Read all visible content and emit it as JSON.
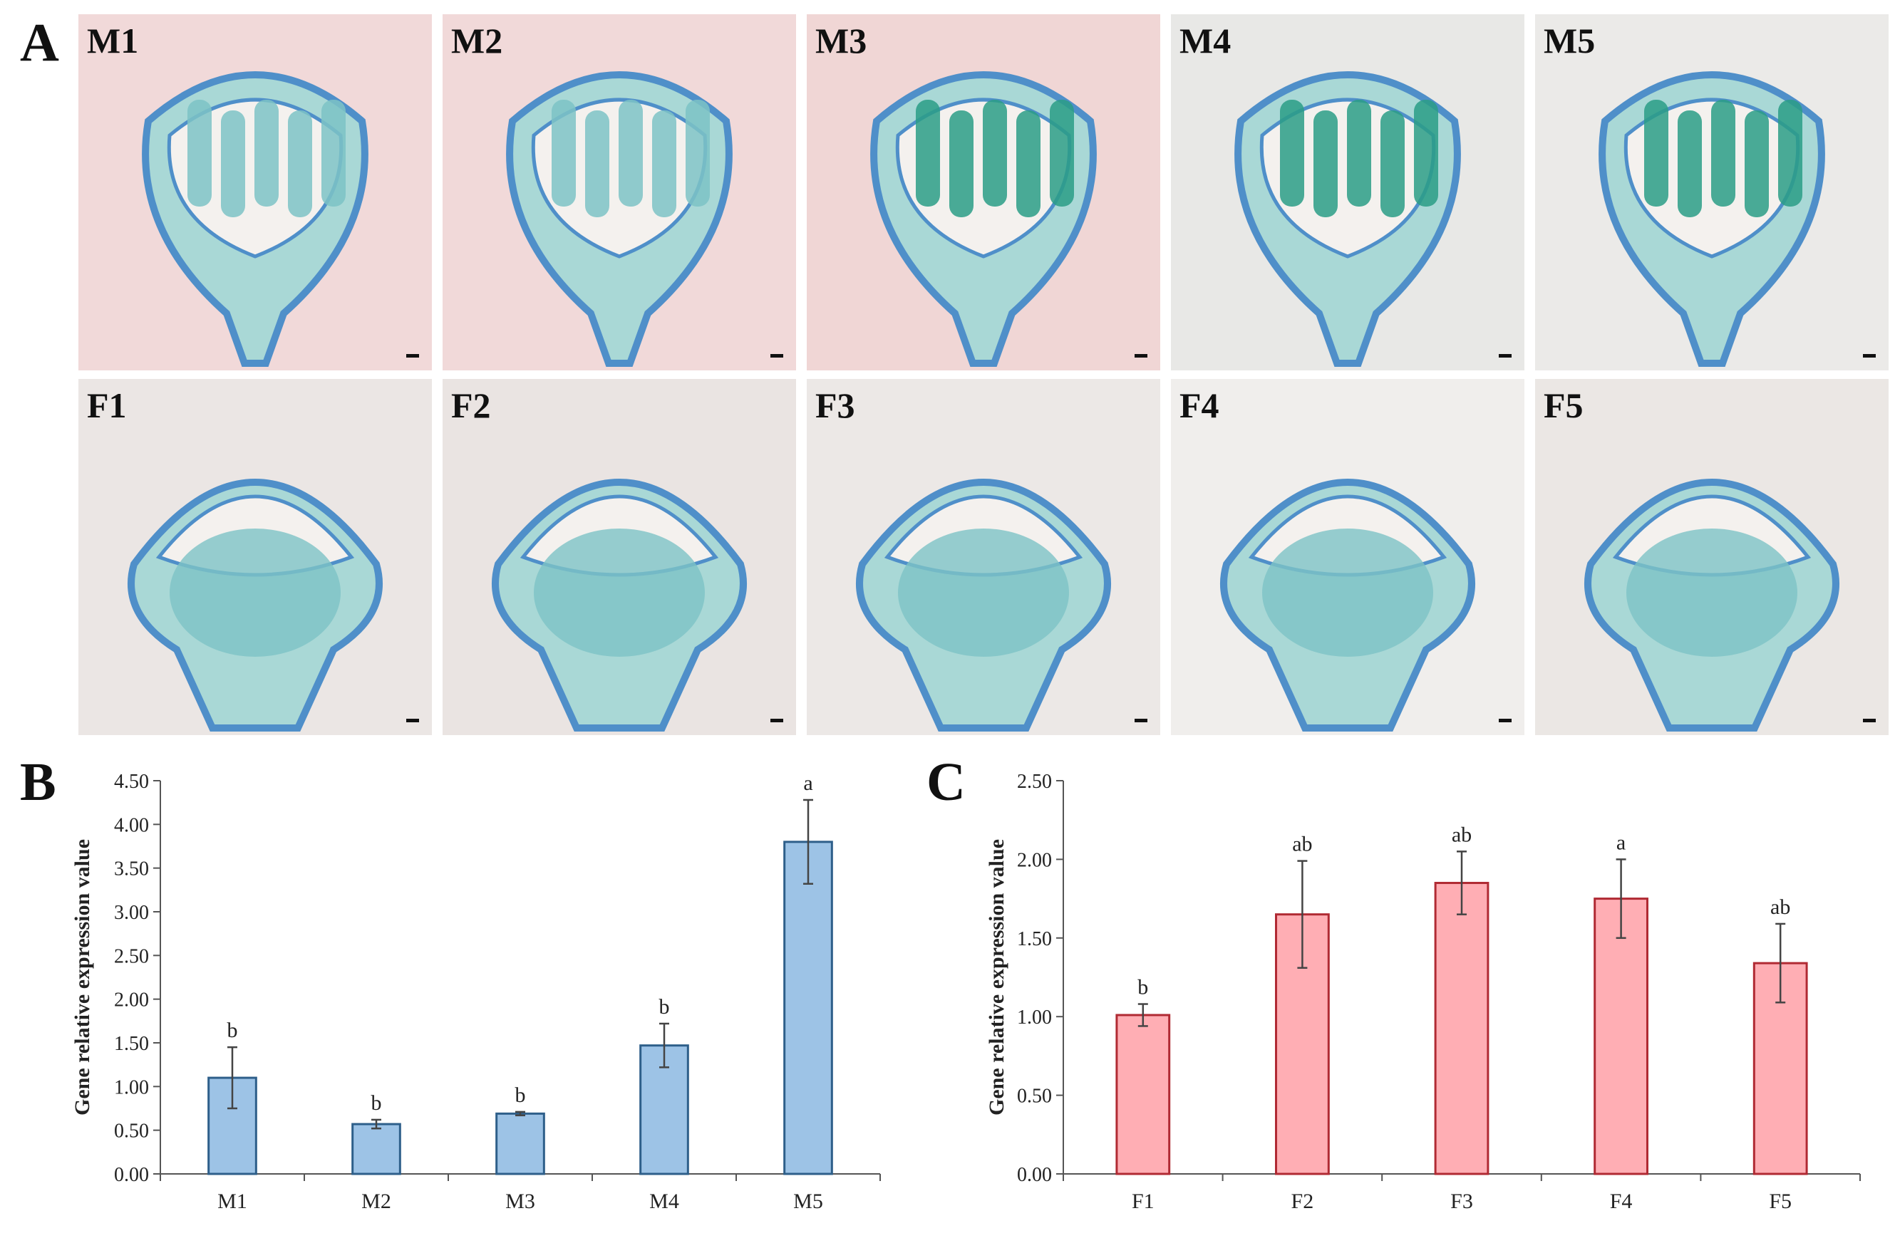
{
  "panel_letters": {
    "a": "A",
    "b": "B",
    "c": "C"
  },
  "micrographs": {
    "top_row": [
      {
        "label": "M1",
        "bg": "#f1d9d9"
      },
      {
        "label": "M2",
        "bg": "#f1d9d9"
      },
      {
        "label": "M3",
        "bg": "#f0d6d5"
      },
      {
        "label": "M4",
        "bg": "#e8e8e6"
      },
      {
        "label": "M5",
        "bg": "#ebeae8"
      }
    ],
    "bottom_row": [
      {
        "label": "F1",
        "bg": "#ebe6e4"
      },
      {
        "label": "F2",
        "bg": "#eae4e2"
      },
      {
        "label": "F3",
        "bg": "#ece8e6"
      },
      {
        "label": "F4",
        "bg": "#f0eeec"
      },
      {
        "label": "F5",
        "bg": "#ebe7e4"
      }
    ],
    "tissue_colors": {
      "outline": "#4f8fc9",
      "tissue": "#7dc3c6",
      "tissue_light": "#a9d8d6",
      "pollen": "#2a9d86"
    }
  },
  "chart_data": [
    {
      "type": "bar",
      "title": "",
      "xlabel": "",
      "ylabel": "Gene relative expression value",
      "categories": [
        "M1",
        "M2",
        "M3",
        "M4",
        "M5"
      ],
      "values": [
        1.1,
        0.57,
        0.69,
        1.47,
        3.8
      ],
      "errors": [
        0.35,
        0.05,
        0.02,
        0.25,
        0.48
      ],
      "significance": [
        "b",
        "b",
        "b",
        "b",
        "a"
      ],
      "ylim": [
        0,
        4.5
      ],
      "yticks": [
        "0.00",
        "0.50",
        "1.00",
        "1.50",
        "2.00",
        "2.50",
        "3.00",
        "3.50",
        "4.00",
        "4.50"
      ],
      "bar_fill": "#9dc3e6",
      "bar_stroke": "#2e5f8a",
      "grid": false
    },
    {
      "type": "bar",
      "title": "",
      "xlabel": "",
      "ylabel": "Gene relative expression value",
      "categories": [
        "F1",
        "F2",
        "F3",
        "F4",
        "F5"
      ],
      "values": [
        1.01,
        1.65,
        1.85,
        1.75,
        1.34
      ],
      "errors": [
        0.07,
        0.34,
        0.2,
        0.25,
        0.25
      ],
      "significance": [
        "b",
        "ab",
        "ab",
        "a",
        "ab"
      ],
      "ylim": [
        0,
        2.5
      ],
      "yticks": [
        "0.00",
        "0.50",
        "1.00",
        "1.50",
        "2.00",
        "2.50"
      ],
      "bar_fill": "#ffaeb4",
      "bar_stroke": "#b02a33",
      "grid": false
    }
  ]
}
